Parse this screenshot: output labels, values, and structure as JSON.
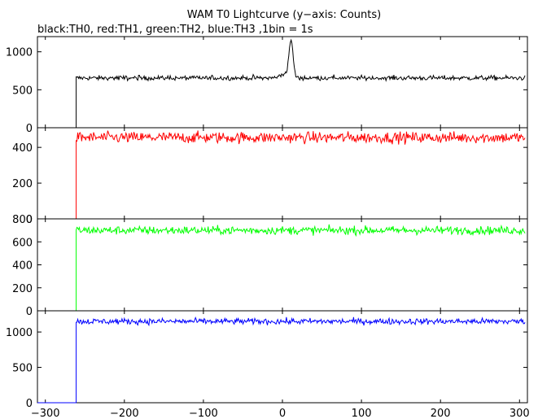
{
  "chart_data": {
    "type": "line",
    "title": "WAM T0 Lightcurve (y−axis: Counts)",
    "subtitle": "black:TH0, red:TH1, green:TH2, blue:TH3 ,1bin = 1s",
    "xlim": [
      -310,
      310
    ],
    "xticks": [
      -300,
      -200,
      -100,
      0,
      100,
      200,
      300
    ],
    "xticklabels": [
      "−300",
      "−200",
      "−100",
      "0",
      "100",
      "200",
      "300"
    ],
    "grid": false,
    "panels": [
      {
        "series": "TH0",
        "color": "#000000",
        "ylim": [
          0,
          1200
        ],
        "yticks": [
          0,
          500,
          1000
        ],
        "yticklabels": [
          "0",
          "500",
          "1000"
        ],
        "x_start": -310,
        "x_end": 307,
        "pre_level": 0,
        "onset_x": -261,
        "base_level": 655,
        "noise": 22,
        "peak": {
          "x": 11,
          "value": 1150
        },
        "min_in_window": 620,
        "max_in_window": 1160
      },
      {
        "series": "TH1",
        "color": "#ff0000",
        "ylim": [
          0,
          510
        ],
        "yticks": [
          0,
          200,
          400
        ],
        "yticklabels": [
          "0",
          "200",
          "400"
        ],
        "x_start": -310,
        "x_end": 307,
        "pre_level": 0,
        "onset_x": -261,
        "base_level": 455,
        "noise": 22,
        "min_in_window": 390,
        "max_in_window": 500
      },
      {
        "series": "TH2",
        "color": "#00ff00",
        "ylim": [
          0,
          800
        ],
        "yticks": [
          0,
          200,
          400,
          600,
          800
        ],
        "yticklabels": [
          "0",
          "200",
          "400",
          "600",
          "800"
        ],
        "x_start": -310,
        "x_end": 307,
        "pre_level": 0,
        "onset_x": -261,
        "base_level": 700,
        "noise": 25,
        "min_in_window": 630,
        "max_in_window": 790
      },
      {
        "series": "TH3",
        "color": "#0000ff",
        "ylim": [
          0,
          1300
        ],
        "yticks": [
          0,
          500,
          1000
        ],
        "yticklabels": [
          "0",
          "500",
          "1000"
        ],
        "x_start": -310,
        "x_end": 307,
        "pre_level": 0,
        "onset_x": -261,
        "base_level": 1150,
        "noise": 30,
        "min_in_window": 1050,
        "max_in_window": 1250
      }
    ]
  }
}
